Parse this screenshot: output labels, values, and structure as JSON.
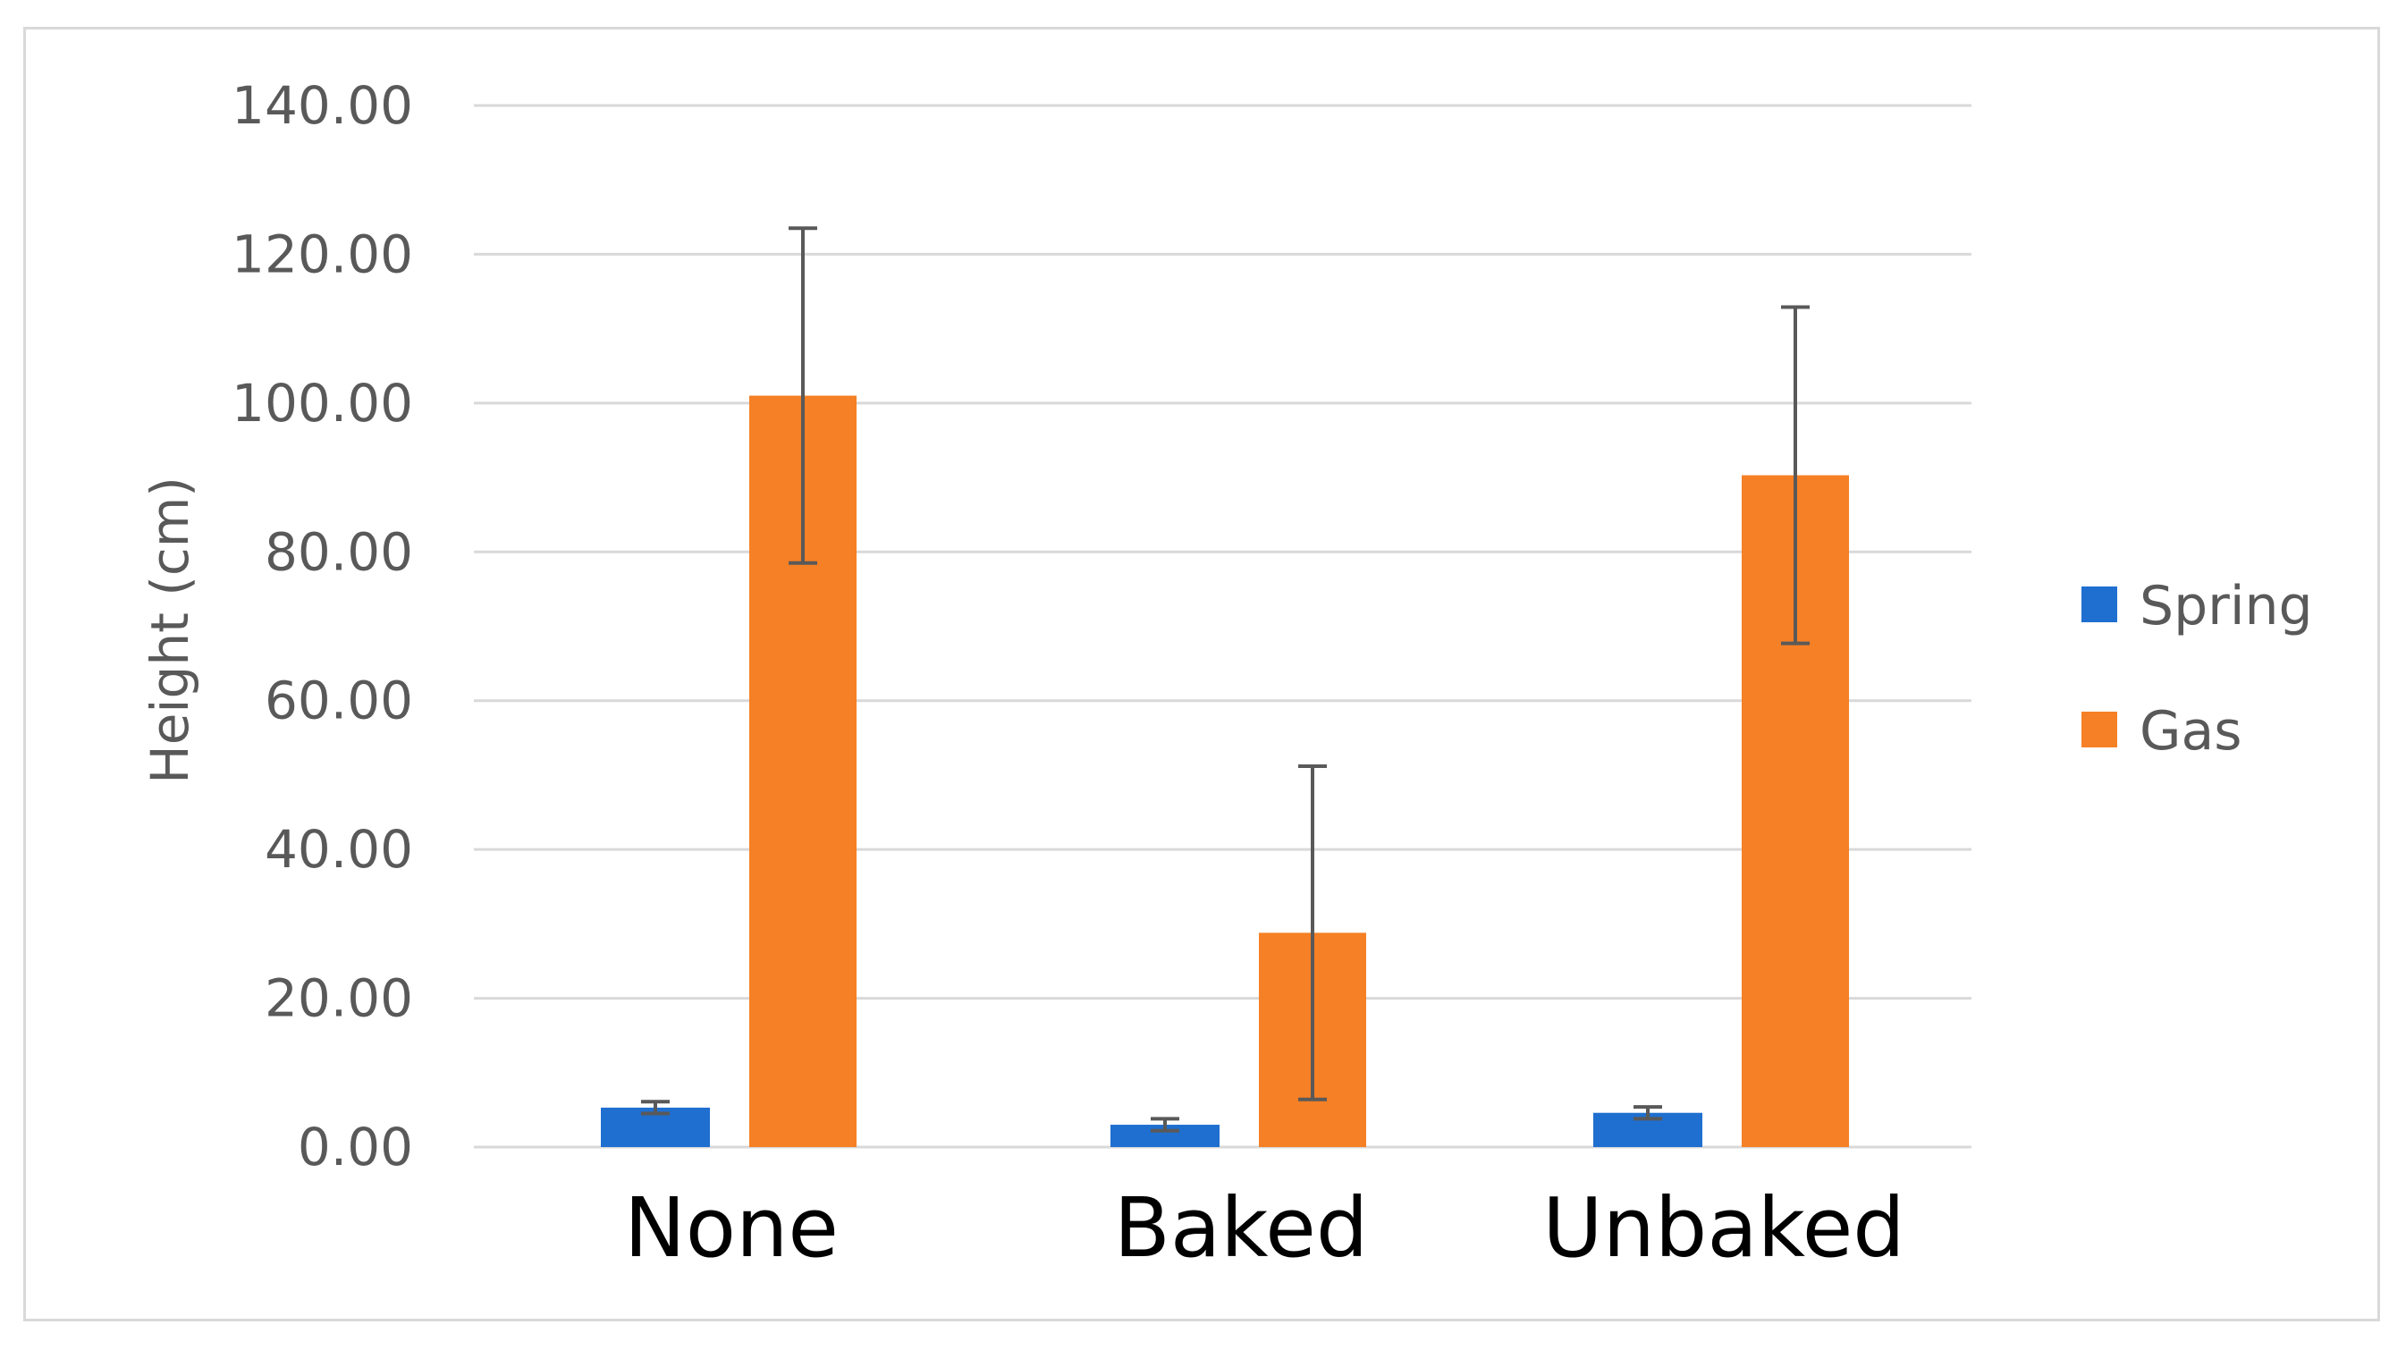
{
  "chart_data": {
    "type": "bar",
    "categories": [
      "None",
      "Baked",
      "Unbaked"
    ],
    "series": [
      {
        "name": "Spring",
        "values": [
          5.3,
          3.0,
          4.6
        ],
        "errors": [
          0.8,
          0.8,
          0.8
        ],
        "color": "#1f6fd0"
      },
      {
        "name": "Gas",
        "values": [
          101.0,
          28.8,
          90.3
        ],
        "errors": [
          22.5,
          22.4,
          22.6
        ],
        "color": "#f58025"
      }
    ],
    "title": "",
    "xlabel": "",
    "ylabel": "Height (cm)",
    "ylim": [
      0,
      140
    ],
    "yticks": [
      "0.00",
      "20.00",
      "40.00",
      "60.00",
      "80.00",
      "100.00",
      "120.00",
      "140.00"
    ],
    "ytick_values": [
      0,
      20,
      40,
      60,
      80,
      100,
      120,
      140
    ],
    "grid": true,
    "legend_position": "right"
  }
}
